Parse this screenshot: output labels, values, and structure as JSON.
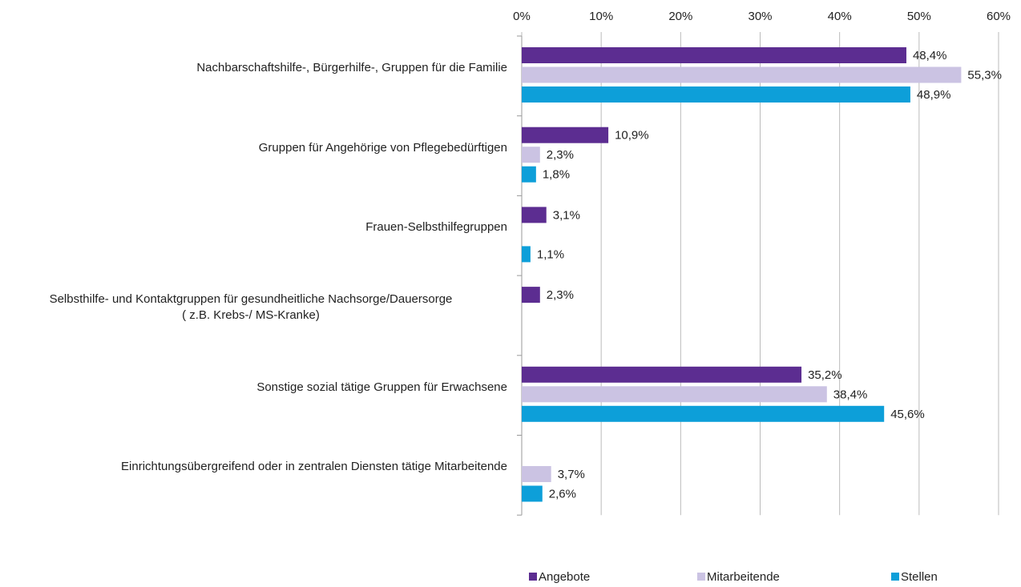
{
  "chart_data": {
    "type": "bar",
    "orientation": "horizontal",
    "categories": [
      "Nachbarschaftshilfe-, Bürgerhilfe-, Gruppen für die Familie",
      "Gruppen für Angehörige von Pflegebedürftigen",
      "Frauen-Selbsthilfegruppen",
      "Selbsthilfe- und Kontaktgruppen für gesundheitliche Nachsorge/Dauersorge\n( z.B. Krebs-/ MS-Kranke)",
      "Sonstige sozial tätige Gruppen für Erwachsene",
      "Einrichtungsübergreifend oder in zentralen Diensten tätige Mitarbeitende"
    ],
    "series": [
      {
        "name": "Angebote",
        "color": "#5c2d91",
        "values": [
          48.4,
          10.9,
          3.1,
          2.3,
          35.2,
          null
        ],
        "value_labels": [
          "48,4%",
          "10,9%",
          "3,1%",
          "2,3%",
          "35,2%",
          null
        ]
      },
      {
        "name": "Mitarbeitende",
        "color": "#cbc3e3",
        "values": [
          55.3,
          2.3,
          null,
          null,
          38.4,
          3.7
        ],
        "value_labels": [
          "55,3%",
          "2,3%",
          null,
          null,
          "38,4%",
          "3,7%"
        ]
      },
      {
        "name": "Stellen",
        "color": "#0d9fd9",
        "values": [
          48.9,
          1.8,
          1.1,
          null,
          45.6,
          2.6
        ],
        "value_labels": [
          "48,9%",
          "1,8%",
          "1,1%",
          null,
          "45,6%",
          "2,6%"
        ]
      }
    ],
    "xlim": [
      0,
      60
    ],
    "xticks": [
      {
        "value": 0,
        "label": "0%"
      },
      {
        "value": 10,
        "label": "10%"
      },
      {
        "value": 20,
        "label": "20%"
      },
      {
        "value": 30,
        "label": "30%"
      },
      {
        "value": 40,
        "label": "40%"
      },
      {
        "value": 50,
        "label": "50%"
      },
      {
        "value": 60,
        "label": "60%"
      }
    ],
    "grid": true,
    "legend": "bottom"
  }
}
